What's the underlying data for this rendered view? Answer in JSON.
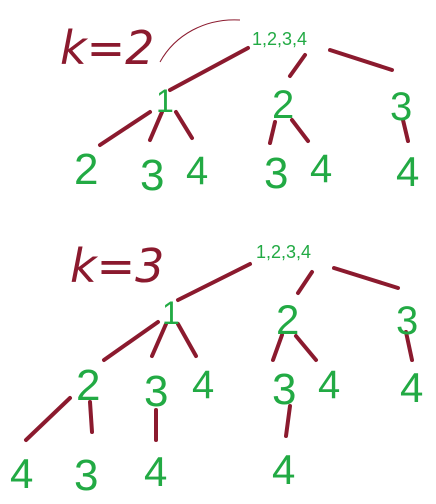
{
  "colors": {
    "edge": "#8b1a2e",
    "node": "#22aa44",
    "k_label": "#8b1a2e"
  },
  "trees": [
    {
      "k_label": "k=2",
      "root": "1,2,3,4",
      "level1": [
        "1",
        "2",
        "3"
      ],
      "children_of_1": [
        "2",
        "3",
        "4"
      ],
      "children_of_2": [
        "3",
        "4"
      ],
      "children_of_3": [
        "4"
      ]
    },
    {
      "k_label": "k=3",
      "root": "1,2,3,4",
      "level1": [
        "1",
        "2",
        "3"
      ],
      "children_of_1": [
        "2",
        "3",
        "4"
      ],
      "children_of_2": [
        "3",
        "4"
      ],
      "children_of_3": [
        "4"
      ],
      "grandchildren_1_2": [
        "4",
        "3"
      ],
      "grandchildren_1_3": [
        "4"
      ],
      "grandchildren_2_3": [
        "4"
      ]
    }
  ]
}
